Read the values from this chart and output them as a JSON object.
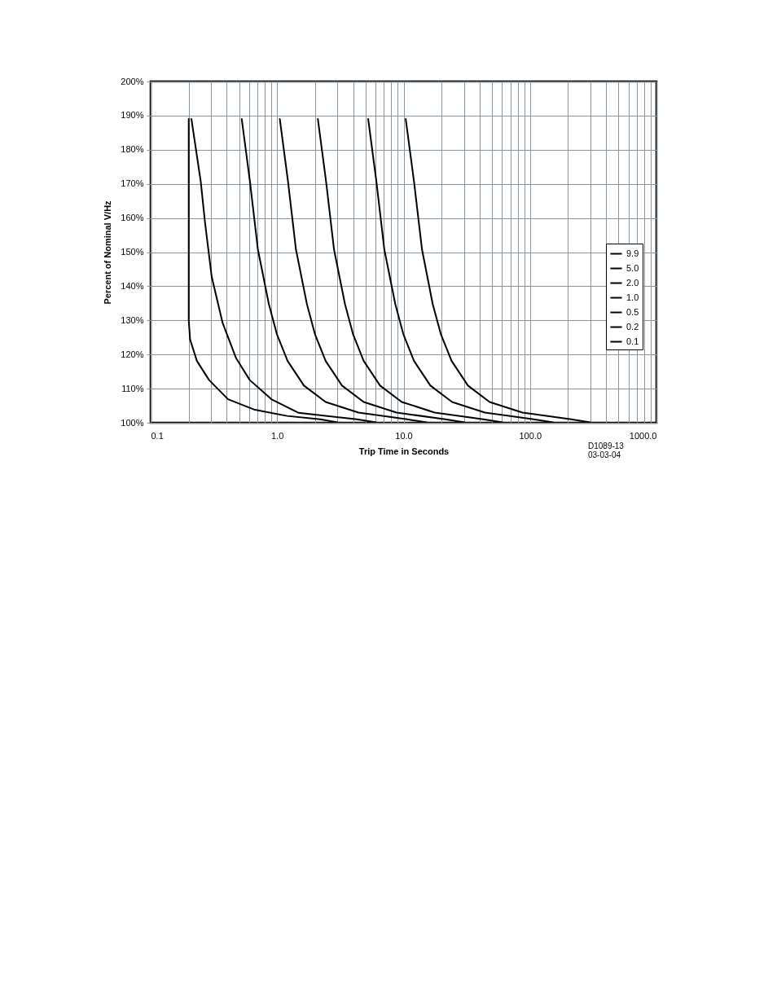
{
  "chart_data": {
    "type": "line",
    "xlabel": "Trip Time in Seconds",
    "ylabel": "Percent of Nominal V/Hz",
    "log": "x",
    "grid": true,
    "legend": "right",
    "line_style": "solid",
    "marker": "none",
    "xlim": [
      0.1,
      1000
    ],
    "ylim": [
      100,
      200
    ],
    "xticks": [
      {
        "value": 0.1,
        "label": "0.1"
      },
      {
        "value": 0.2,
        "label": null
      },
      {
        "value": 0.3,
        "label": null
      },
      {
        "value": 0.4,
        "label": null
      },
      {
        "value": 0.5,
        "label": null
      },
      {
        "value": 0.6,
        "label": null
      },
      {
        "value": 0.7,
        "label": null
      },
      {
        "value": 0.8,
        "label": null
      },
      {
        "value": 0.9,
        "label": null
      },
      {
        "value": 1,
        "label": "1.0"
      },
      {
        "value": 2,
        "label": null
      },
      {
        "value": 3,
        "label": null
      },
      {
        "value": 4,
        "label": null
      },
      {
        "value": 5,
        "label": null
      },
      {
        "value": 6,
        "label": null
      },
      {
        "value": 7,
        "label": null
      },
      {
        "value": 8,
        "label": null
      },
      {
        "value": 9,
        "label": null
      },
      {
        "value": 10,
        "label": "10.0"
      },
      {
        "value": 20,
        "label": null
      },
      {
        "value": 30,
        "label": null
      },
      {
        "value": 40,
        "label": null
      },
      {
        "value": 50,
        "label": null
      },
      {
        "value": 60,
        "label": null
      },
      {
        "value": 70,
        "label": null
      },
      {
        "value": 80,
        "label": null
      },
      {
        "value": 90,
        "label": null
      },
      {
        "value": 100,
        "label": "100.0"
      },
      {
        "value": 200,
        "label": null
      },
      {
        "value": 300,
        "label": null
      },
      {
        "value": 400,
        "label": null
      },
      {
        "value": 500,
        "label": null
      },
      {
        "value": 600,
        "label": null
      },
      {
        "value": 700,
        "label": null
      },
      {
        "value": 800,
        "label": null
      },
      {
        "value": 900,
        "label": null
      },
      {
        "value": 1000,
        "label": "1000.0"
      }
    ],
    "yticks": [
      {
        "value": 100,
        "label": "100%"
      },
      {
        "value": 110,
        "label": "110%"
      },
      {
        "value": 120,
        "label": "120%"
      },
      {
        "value": 130,
        "label": "130%"
      },
      {
        "value": 140,
        "label": "140%"
      },
      {
        "value": 150,
        "label": "150%"
      },
      {
        "value": 160,
        "label": "160%"
      },
      {
        "value": 170,
        "label": "170%"
      },
      {
        "value": 180,
        "label": "180%"
      },
      {
        "value": 190,
        "label": "190%"
      },
      {
        "value": 200,
        "label": "200%"
      }
    ],
    "annotations": [
      "D1089-13",
      "03-03-04"
    ],
    "series": [
      {
        "name": "9.9",
        "color": "#000000",
        "x": [
          10.4,
          12.1,
          14,
          17,
          19.7,
          24,
          32.3,
          47.9,
          87.1,
          212,
          300
        ],
        "values": [
          189,
          170.6,
          150.7,
          134.8,
          126,
          118.1,
          110.9,
          106.1,
          103,
          101,
          100.1
        ]
      },
      {
        "name": "5.0",
        "color": "#000000",
        "x": [
          5.25,
          6.1,
          7.05,
          8.6,
          9.95,
          12.1,
          16.3,
          24.2,
          44,
          107,
          152
        ],
        "values": [
          189,
          170.6,
          150.7,
          134.8,
          126,
          118.1,
          110.9,
          106.1,
          103,
          101,
          100.1
        ]
      },
      {
        "name": "2.0",
        "color": "#000000",
        "x": [
          2.1,
          2.44,
          2.82,
          3.44,
          3.98,
          4.84,
          6.52,
          9.68,
          17.6,
          42.8,
          60.6
        ],
        "values": [
          189,
          170.6,
          150.7,
          134.8,
          126,
          118.1,
          110.9,
          106.1,
          103,
          101,
          100.1
        ]
      },
      {
        "name": "1.0",
        "color": "#000000",
        "x": [
          1.05,
          1.22,
          1.41,
          1.72,
          1.99,
          2.42,
          3.26,
          4.84,
          8.8,
          21.4,
          30.3
        ],
        "values": [
          189,
          170.6,
          150.7,
          134.8,
          126,
          118.1,
          110.9,
          106.1,
          103,
          101,
          100.1
        ]
      },
      {
        "name": "0.5",
        "color": "#000000",
        "x": [
          0.525,
          0.61,
          0.705,
          0.86,
          0.995,
          1.21,
          1.63,
          2.42,
          4.4,
          10.7,
          15.2
        ],
        "values": [
          189,
          170.6,
          150.7,
          134.8,
          126,
          118.1,
          110.9,
          106.1,
          103,
          101,
          100.1
        ]
      },
      {
        "name": "0.2",
        "color": "#000000",
        "x": [
          0.21,
          0.249,
          0.269,
          0.304,
          0.371,
          0.474,
          0.608,
          0.9,
          1.48,
          4.28,
          6.06
        ],
        "values": [
          189,
          170.6,
          158.7,
          142.7,
          129.2,
          118.9,
          112.5,
          106.9,
          102.9,
          101,
          100.1
        ]
      },
      {
        "name": "0.1",
        "color": "#000000",
        "x": [
          0.2,
          0.2,
          0.2,
          0.2,
          0.205,
          0.232,
          0.29,
          0.409,
          0.667,
          1.2,
          2.2,
          3
        ],
        "values": [
          189,
          170,
          150,
          130,
          124.4,
          118.1,
          112.5,
          106.9,
          103.8,
          102,
          101,
          100.1
        ]
      }
    ]
  }
}
